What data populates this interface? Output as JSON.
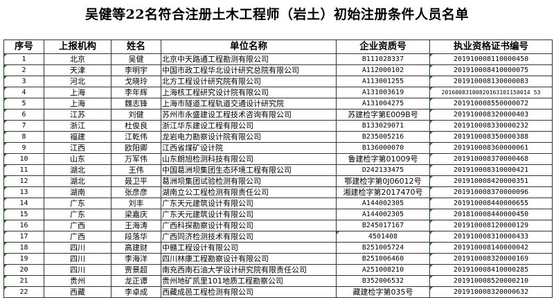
{
  "title": "吴健等22名符合注册土木工程师（岩土）初始注册条件人员名单",
  "headers": [
    "序号",
    "上报机构",
    "姓名",
    "单位名称",
    "企业资质号",
    "执业资格证书编号"
  ],
  "rows": [
    [
      "1",
      "北京",
      "吴健",
      "北京中天路通工程勘测有限公司",
      "B111028337",
      "201910008110000450"
    ],
    [
      "2",
      "天津",
      "李明宇",
      "中国市政工程华北设计研究总院有限公司",
      "A112000102",
      "201910008410000075"
    ],
    [
      "3",
      "河北",
      "戈晓玲",
      "北方工程设计研究院有限公司",
      "A113001255",
      "201910008130000083"
    ],
    [
      "4",
      "上海",
      "李年辉",
      "上海核工程研究设计院有限公司",
      "A131003619",
      "20160083100820163101150014 53"
    ],
    [
      "5",
      "上海",
      "魏志锋",
      "上海市隧道工程轨道交通设计研究院",
      "A131004275",
      "201910008550000072"
    ],
    [
      "6",
      "江苏",
      "刘健",
      "苏州市永盛建设工程技术咨询有限公司",
      "苏建检字第E009B号",
      "201910008320000403"
    ],
    [
      "7",
      "浙江",
      "杜俊良",
      "浙江华东建设工程有限公司",
      "B133029071",
      "201910008330000232"
    ],
    [
      "8",
      "福建",
      "江乾伟",
      "龙岩电力勘察设计院有限公司",
      "B235005216",
      "201910008350000388"
    ],
    [
      "9",
      "江西",
      "欧阳卿",
      "江西省煤矿设计院",
      "B136000070",
      "201910008360000061"
    ],
    [
      "10",
      "山东",
      "万军伟",
      "山东朗旭检测科技有限公司",
      "鲁建检字第01009号",
      "201910008370000468"
    ],
    [
      "11",
      "湖北",
      "王伟",
      "中国葛洲坝集团生态环境工程有限公司",
      "D242133475",
      "201910008310000421"
    ],
    [
      "12",
      "湖北",
      "聂卫平",
      "葛洲坝集团试验检测有限公司",
      "鄂建检字第0J06012号",
      "201910008420000351"
    ],
    [
      "13",
      "湖南",
      "张彦彦",
      "湖南立公工程检测有限责任公司",
      "湘建检字第2017470号",
      "201910008370000096"
    ],
    [
      "14",
      "广东",
      "刘丰",
      "广东天元建筑设计有限公司",
      "A144002305",
      "201910008440000655"
    ],
    [
      "15",
      "广东",
      "梁嘉庆",
      "广东天元建筑设计有限公司",
      "A144002305",
      "201810008440000450"
    ],
    [
      "16",
      "广西",
      "王海涛",
      "广西科探勘察设计有限公司",
      "B245017167",
      "201910008120000129"
    ],
    [
      "17",
      "广西",
      "段落华",
      "广西同济检测技术有限公司",
      "4501408",
      "201910008310000433"
    ],
    [
      "18",
      "四川",
      "高建财",
      "中赣工程设计有限公司",
      "B251005724",
      "201910008140000042"
    ],
    [
      "19",
      "四川",
      "李海洋",
      "四川林康工程勘察设计有限公司",
      "B251006460",
      "201910008320000169"
    ],
    [
      "20",
      "四川",
      "贾景超",
      "南充西南石油大学设计研究院有限责任公司",
      "A251008210",
      "201910008410000285"
    ],
    [
      "21",
      "贵州",
      "龙正谭",
      "贵州地矿凯里101地质工程勘察公司",
      "B352006532",
      "201910008520000210"
    ],
    [
      "22",
      "西藏",
      "李卓成",
      "西藏成邑工程检测有限公司",
      "藏建检字第035号",
      "201910008320000632"
    ]
  ]
}
